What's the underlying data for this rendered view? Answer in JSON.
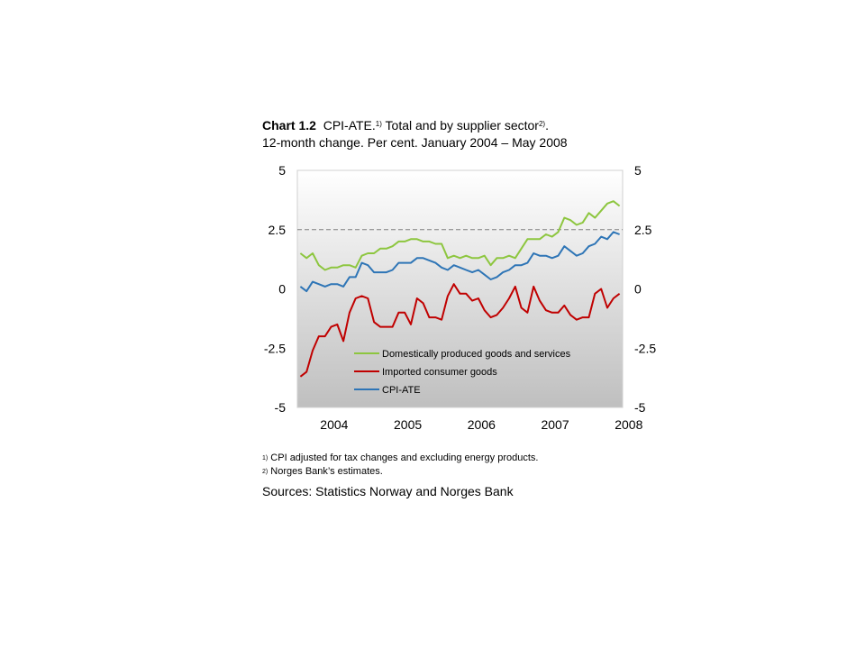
{
  "title": {
    "chart_number": "Chart 1.2",
    "line1_text": "CPI-ATE.",
    "fn1": "1)",
    "line1_rest": " Total and by supplier sector",
    "fn2": "2)",
    "line1_end": ".",
    "line2": "12-month change. Per cent. January 2004 – May 2008"
  },
  "notes": {
    "note1_marker": "1)",
    "note1": "CPI adjusted for tax changes and excluding energy products.",
    "note2_marker": "2)",
    "note2": "Norges Bank’s estimates.",
    "sources": "Sources: Statistics Norway and Norges Bank"
  },
  "chart_data": {
    "type": "line",
    "x_ticks": [
      "2004",
      "2005",
      "2006",
      "2007",
      "2008"
    ],
    "y_ticks_left": [
      "5",
      "2.5",
      "0",
      "-2.5",
      "-5"
    ],
    "y_ticks_right": [
      "5",
      "2.5",
      "0",
      "-2.5",
      "-5"
    ],
    "ylim": [
      -5,
      5
    ],
    "x_start": "2004-01",
    "x_end": "2008-05",
    "reference_line": 2.5,
    "colors": {
      "domestic": "#8DC63F",
      "imported": "#C00000",
      "cpi_ate": "#2E75B6",
      "reference": "#7F7F7F"
    },
    "series": [
      {
        "name": "Domestically produced goods and services",
        "color": "#8DC63F",
        "values": [
          1.5,
          1.3,
          1.5,
          1.0,
          0.8,
          0.9,
          0.9,
          1.0,
          1.0,
          0.9,
          1.4,
          1.5,
          1.5,
          1.7,
          1.7,
          1.8,
          2.0,
          2.0,
          2.1,
          2.1,
          2.0,
          2.0,
          1.9,
          1.9,
          1.3,
          1.4,
          1.3,
          1.4,
          1.3,
          1.3,
          1.4,
          1.0,
          1.3,
          1.3,
          1.4,
          1.3,
          1.7,
          2.1,
          2.1,
          2.1,
          2.3,
          2.2,
          2.4,
          3.0,
          2.9,
          2.7,
          2.8,
          3.2,
          3.0,
          3.3,
          3.6,
          3.7,
          3.5
        ]
      },
      {
        "name": "Imported consumer goods",
        "color": "#C00000",
        "values": [
          -3.7,
          -3.5,
          -2.6,
          -2.0,
          -2.0,
          -1.6,
          -1.5,
          -2.2,
          -1.0,
          -0.4,
          -0.3,
          -0.4,
          -1.4,
          -1.6,
          -1.6,
          -1.6,
          -1.0,
          -1.0,
          -1.5,
          -0.4,
          -0.6,
          -1.2,
          -1.2,
          -1.3,
          -0.3,
          0.2,
          -0.2,
          -0.2,
          -0.5,
          -0.4,
          -0.9,
          -1.2,
          -1.1,
          -0.8,
          -0.4,
          0.1,
          -0.8,
          -1.0,
          0.1,
          -0.5,
          -0.9,
          -1.0,
          -1.0,
          -0.7,
          -1.1,
          -1.3,
          -1.2,
          -1.2,
          -0.2,
          0.0,
          -0.8,
          -0.4,
          -0.2
        ]
      },
      {
        "name": "CPI-ATE",
        "color": "#2E75B6",
        "values": [
          0.1,
          -0.1,
          0.3,
          0.2,
          0.1,
          0.2,
          0.2,
          0.1,
          0.5,
          0.5,
          1.1,
          1.0,
          0.7,
          0.7,
          0.7,
          0.8,
          1.1,
          1.1,
          1.1,
          1.3,
          1.3,
          1.2,
          1.1,
          0.9,
          0.8,
          1.0,
          0.9,
          0.8,
          0.7,
          0.8,
          0.6,
          0.4,
          0.5,
          0.7,
          0.8,
          1.0,
          1.0,
          1.1,
          1.5,
          1.4,
          1.4,
          1.3,
          1.4,
          1.8,
          1.6,
          1.4,
          1.5,
          1.8,
          1.9,
          2.2,
          2.1,
          2.4,
          2.3
        ]
      }
    ]
  }
}
